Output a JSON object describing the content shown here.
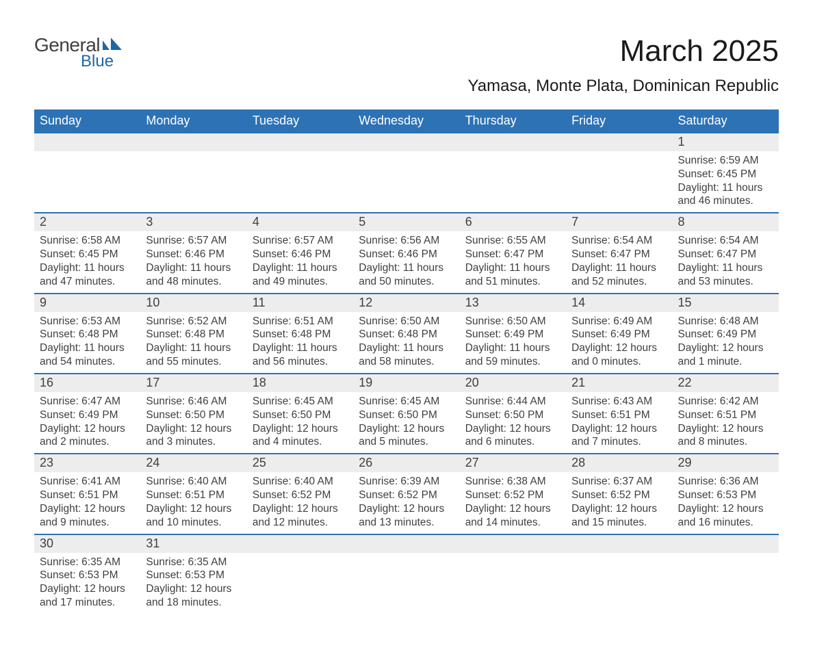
{
  "branding": {
    "logo_text_1": "General",
    "logo_text_2": "Blue",
    "logo_color_1": "#3f3f3f",
    "logo_color_2": "#1f66a8",
    "logo_icon_color": "#1f66a8"
  },
  "title": "March 2025",
  "location": "Yamasa, Monte Plata, Dominican Republic",
  "colors": {
    "header_bg": "#2d72b5",
    "header_text": "#ffffff",
    "daynum_bg": "#ededed",
    "border": "#2d72b5",
    "body_text": "#3f3f3f",
    "page_bg": "#ffffff"
  },
  "typography": {
    "title_fontsize": 44,
    "location_fontsize": 24,
    "header_fontsize": 18,
    "daynum_fontsize": 18,
    "body_fontsize": 15.5,
    "font_family": "Arial"
  },
  "layout": {
    "columns": 7,
    "rows": 6,
    "cell_border_width": 2
  },
  "weekdays": [
    "Sunday",
    "Monday",
    "Tuesday",
    "Wednesday",
    "Thursday",
    "Friday",
    "Saturday"
  ],
  "weeks": [
    [
      null,
      null,
      null,
      null,
      null,
      null,
      {
        "day": "1",
        "sunrise": "Sunrise: 6:59 AM",
        "sunset": "Sunset: 6:45 PM",
        "daylight1": "Daylight: 11 hours",
        "daylight2": "and 46 minutes."
      }
    ],
    [
      {
        "day": "2",
        "sunrise": "Sunrise: 6:58 AM",
        "sunset": "Sunset: 6:45 PM",
        "daylight1": "Daylight: 11 hours",
        "daylight2": "and 47 minutes."
      },
      {
        "day": "3",
        "sunrise": "Sunrise: 6:57 AM",
        "sunset": "Sunset: 6:46 PM",
        "daylight1": "Daylight: 11 hours",
        "daylight2": "and 48 minutes."
      },
      {
        "day": "4",
        "sunrise": "Sunrise: 6:57 AM",
        "sunset": "Sunset: 6:46 PM",
        "daylight1": "Daylight: 11 hours",
        "daylight2": "and 49 minutes."
      },
      {
        "day": "5",
        "sunrise": "Sunrise: 6:56 AM",
        "sunset": "Sunset: 6:46 PM",
        "daylight1": "Daylight: 11 hours",
        "daylight2": "and 50 minutes."
      },
      {
        "day": "6",
        "sunrise": "Sunrise: 6:55 AM",
        "sunset": "Sunset: 6:47 PM",
        "daylight1": "Daylight: 11 hours",
        "daylight2": "and 51 minutes."
      },
      {
        "day": "7",
        "sunrise": "Sunrise: 6:54 AM",
        "sunset": "Sunset: 6:47 PM",
        "daylight1": "Daylight: 11 hours",
        "daylight2": "and 52 minutes."
      },
      {
        "day": "8",
        "sunrise": "Sunrise: 6:54 AM",
        "sunset": "Sunset: 6:47 PM",
        "daylight1": "Daylight: 11 hours",
        "daylight2": "and 53 minutes."
      }
    ],
    [
      {
        "day": "9",
        "sunrise": "Sunrise: 6:53 AM",
        "sunset": "Sunset: 6:48 PM",
        "daylight1": "Daylight: 11 hours",
        "daylight2": "and 54 minutes."
      },
      {
        "day": "10",
        "sunrise": "Sunrise: 6:52 AM",
        "sunset": "Sunset: 6:48 PM",
        "daylight1": "Daylight: 11 hours",
        "daylight2": "and 55 minutes."
      },
      {
        "day": "11",
        "sunrise": "Sunrise: 6:51 AM",
        "sunset": "Sunset: 6:48 PM",
        "daylight1": "Daylight: 11 hours",
        "daylight2": "and 56 minutes."
      },
      {
        "day": "12",
        "sunrise": "Sunrise: 6:50 AM",
        "sunset": "Sunset: 6:48 PM",
        "daylight1": "Daylight: 11 hours",
        "daylight2": "and 58 minutes."
      },
      {
        "day": "13",
        "sunrise": "Sunrise: 6:50 AM",
        "sunset": "Sunset: 6:49 PM",
        "daylight1": "Daylight: 11 hours",
        "daylight2": "and 59 minutes."
      },
      {
        "day": "14",
        "sunrise": "Sunrise: 6:49 AM",
        "sunset": "Sunset: 6:49 PM",
        "daylight1": "Daylight: 12 hours",
        "daylight2": "and 0 minutes."
      },
      {
        "day": "15",
        "sunrise": "Sunrise: 6:48 AM",
        "sunset": "Sunset: 6:49 PM",
        "daylight1": "Daylight: 12 hours",
        "daylight2": "and 1 minute."
      }
    ],
    [
      {
        "day": "16",
        "sunrise": "Sunrise: 6:47 AM",
        "sunset": "Sunset: 6:49 PM",
        "daylight1": "Daylight: 12 hours",
        "daylight2": "and 2 minutes."
      },
      {
        "day": "17",
        "sunrise": "Sunrise: 6:46 AM",
        "sunset": "Sunset: 6:50 PM",
        "daylight1": "Daylight: 12 hours",
        "daylight2": "and 3 minutes."
      },
      {
        "day": "18",
        "sunrise": "Sunrise: 6:45 AM",
        "sunset": "Sunset: 6:50 PM",
        "daylight1": "Daylight: 12 hours",
        "daylight2": "and 4 minutes."
      },
      {
        "day": "19",
        "sunrise": "Sunrise: 6:45 AM",
        "sunset": "Sunset: 6:50 PM",
        "daylight1": "Daylight: 12 hours",
        "daylight2": "and 5 minutes."
      },
      {
        "day": "20",
        "sunrise": "Sunrise: 6:44 AM",
        "sunset": "Sunset: 6:50 PM",
        "daylight1": "Daylight: 12 hours",
        "daylight2": "and 6 minutes."
      },
      {
        "day": "21",
        "sunrise": "Sunrise: 6:43 AM",
        "sunset": "Sunset: 6:51 PM",
        "daylight1": "Daylight: 12 hours",
        "daylight2": "and 7 minutes."
      },
      {
        "day": "22",
        "sunrise": "Sunrise: 6:42 AM",
        "sunset": "Sunset: 6:51 PM",
        "daylight1": "Daylight: 12 hours",
        "daylight2": "and 8 minutes."
      }
    ],
    [
      {
        "day": "23",
        "sunrise": "Sunrise: 6:41 AM",
        "sunset": "Sunset: 6:51 PM",
        "daylight1": "Daylight: 12 hours",
        "daylight2": "and 9 minutes."
      },
      {
        "day": "24",
        "sunrise": "Sunrise: 6:40 AM",
        "sunset": "Sunset: 6:51 PM",
        "daylight1": "Daylight: 12 hours",
        "daylight2": "and 10 minutes."
      },
      {
        "day": "25",
        "sunrise": "Sunrise: 6:40 AM",
        "sunset": "Sunset: 6:52 PM",
        "daylight1": "Daylight: 12 hours",
        "daylight2": "and 12 minutes."
      },
      {
        "day": "26",
        "sunrise": "Sunrise: 6:39 AM",
        "sunset": "Sunset: 6:52 PM",
        "daylight1": "Daylight: 12 hours",
        "daylight2": "and 13 minutes."
      },
      {
        "day": "27",
        "sunrise": "Sunrise: 6:38 AM",
        "sunset": "Sunset: 6:52 PM",
        "daylight1": "Daylight: 12 hours",
        "daylight2": "and 14 minutes."
      },
      {
        "day": "28",
        "sunrise": "Sunrise: 6:37 AM",
        "sunset": "Sunset: 6:52 PM",
        "daylight1": "Daylight: 12 hours",
        "daylight2": "and 15 minutes."
      },
      {
        "day": "29",
        "sunrise": "Sunrise: 6:36 AM",
        "sunset": "Sunset: 6:53 PM",
        "daylight1": "Daylight: 12 hours",
        "daylight2": "and 16 minutes."
      }
    ],
    [
      {
        "day": "30",
        "sunrise": "Sunrise: 6:35 AM",
        "sunset": "Sunset: 6:53 PM",
        "daylight1": "Daylight: 12 hours",
        "daylight2": "and 17 minutes."
      },
      {
        "day": "31",
        "sunrise": "Sunrise: 6:35 AM",
        "sunset": "Sunset: 6:53 PM",
        "daylight1": "Daylight: 12 hours",
        "daylight2": "and 18 minutes."
      },
      null,
      null,
      null,
      null,
      null
    ]
  ]
}
